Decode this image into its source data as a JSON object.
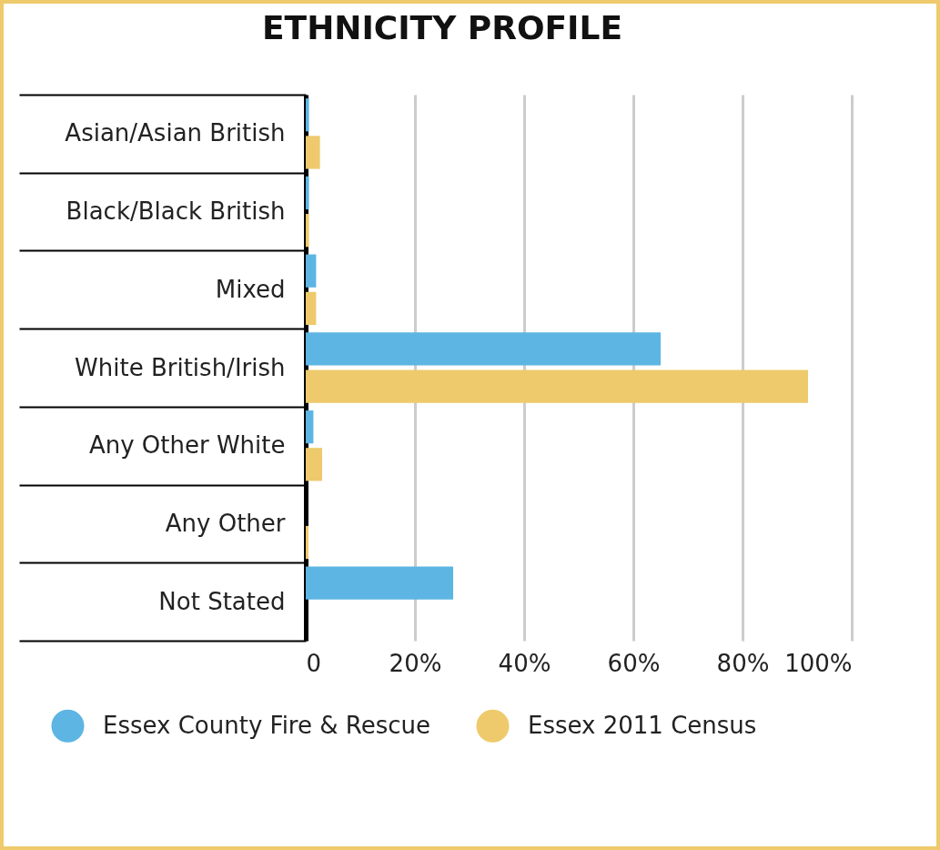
{
  "chart_data": {
    "type": "bar",
    "title": "ETHNICITY PROFILE",
    "orientation": "horizontal",
    "categories": [
      "Asian/Asian British",
      "Black/Black British",
      "Mixed",
      "White British/Irish",
      "Any Other White",
      "Any Other",
      "Not Stated"
    ],
    "series": [
      {
        "name": "Essex County Fire & Rescue",
        "color": "#5db5e3",
        "values": [
          0.6,
          0.6,
          1.9,
          65,
          1.4,
          0,
          27
        ]
      },
      {
        "name": "Essex 2011 Census",
        "color": "#eeca6c",
        "values": [
          2.6,
          0.6,
          1.9,
          92,
          3,
          0.5,
          0
        ]
      }
    ],
    "xlim": [
      0,
      100
    ],
    "xticks": [
      0,
      {
        "value": 20,
        "label": "20%"
      },
      {
        "value": 40,
        "label": "40%"
      },
      {
        "value": 60,
        "label": "60%"
      },
      {
        "value": 80,
        "label": "80%"
      },
      {
        "value": 100,
        "label": "100%"
      }
    ],
    "grid": "x",
    "legend": "bottom"
  }
}
